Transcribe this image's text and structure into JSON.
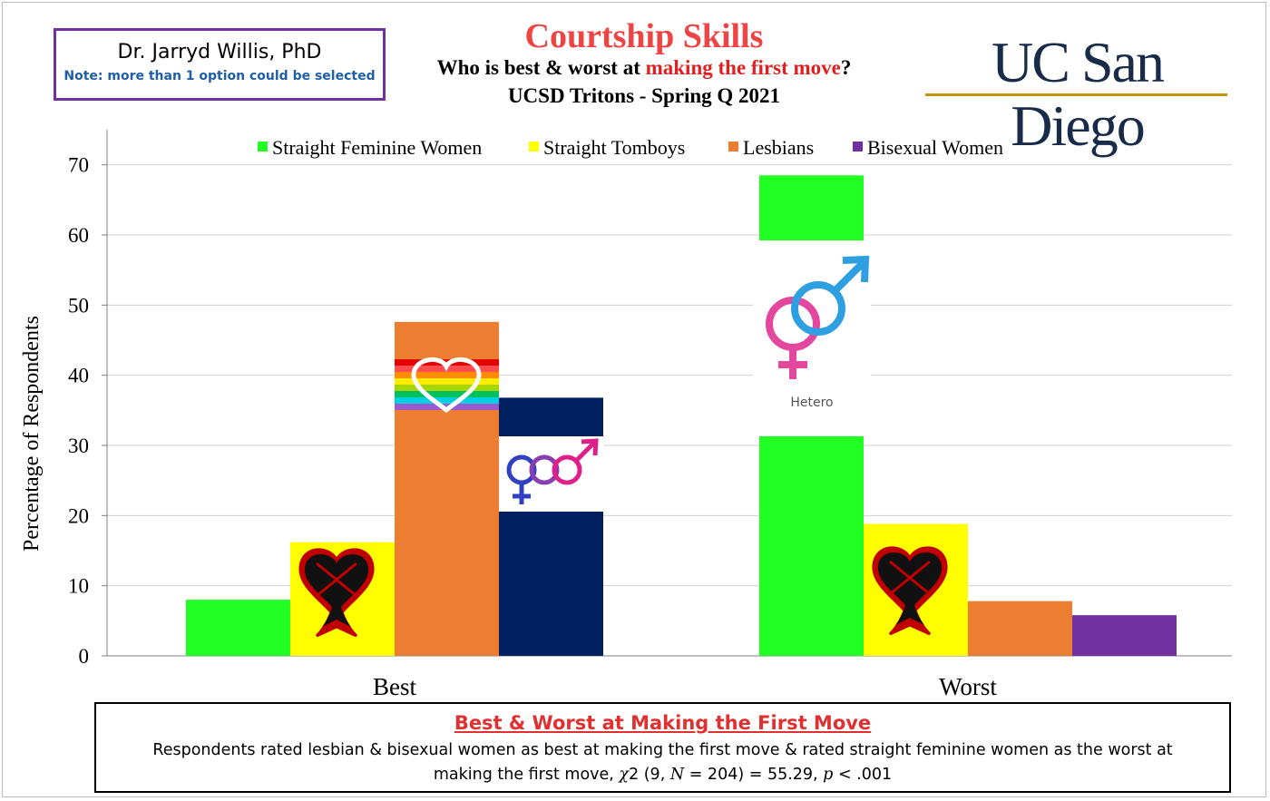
{
  "author": {
    "name": "Dr. Jarryd Willis, PhD",
    "note": "Note: more than 1 option could be selected"
  },
  "title": {
    "main": "Courtship Skills",
    "sub_prefix": "Who is best & worst at ",
    "sub_highlight": "making the first move",
    "sub_suffix": "?",
    "sub2": "UCSD Tritons - Spring Q 2021"
  },
  "logo": {
    "text": "UC San Diego"
  },
  "caption": {
    "title": "Best & Worst at Making the First Move",
    "text_line1": "Respondents  rated lesbian & bisexual women as best at making the first move & rated straight feminine women as the worst at",
    "text_prefix": "making the first move, ",
    "chi": "χ",
    "text_mid1": "2 (9, ",
    "N": "N",
    "text_mid2": " = 204) = 55.29, ",
    "p": "p",
    "text_suffix": " < .001"
  },
  "icons": [
    "heartless-emblem-icon",
    "pride-heart-icon",
    "bisexual-symbol-icon",
    "hetero-symbol-icon"
  ],
  "hetero_label": "Hetero",
  "chart_data": {
    "type": "bar",
    "ylabel": "Percentage of Respondents",
    "xlabel": "",
    "ylim": [
      0,
      75
    ],
    "yticks": [
      0,
      10,
      20,
      30,
      40,
      50,
      60,
      70
    ],
    "grid": true,
    "legend_position": "top",
    "categories": [
      "Best",
      "Worst"
    ],
    "series": [
      {
        "name": "Straight Feminine Women",
        "color": "#22ff22",
        "values": [
          8,
          68.5
        ]
      },
      {
        "name": "Straight Tomboys",
        "color": "#ffff00",
        "values": [
          16.2,
          18.8
        ]
      },
      {
        "name": "Lesbians",
        "color": "#ed7d31",
        "values": [
          47.6,
          7.8
        ]
      },
      {
        "name": "Bisexual Women",
        "color": "#002060",
        "values": [
          36.8,
          null
        ]
      },
      {
        "name": "Bisexual Women",
        "color": "#7030a0",
        "values": [
          null,
          5.8
        ]
      }
    ]
  }
}
